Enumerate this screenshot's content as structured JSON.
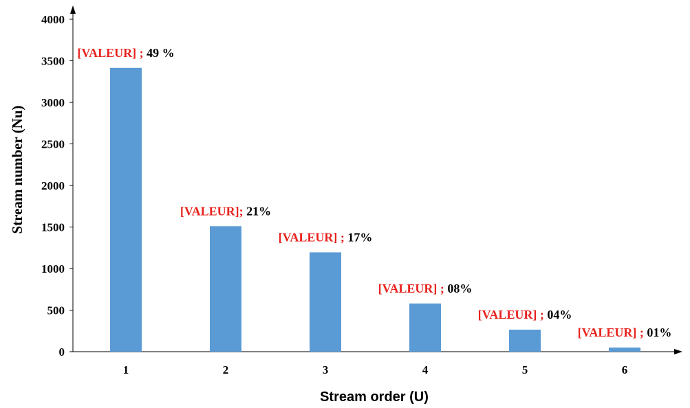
{
  "chart_data": {
    "type": "bar",
    "title": "",
    "xlabel": "Stream order (U)",
    "ylabel": "Stream number (Nu)",
    "categories": [
      "1",
      "2",
      "3",
      "4",
      "5",
      "6"
    ],
    "values": [
      3415,
      1510,
      1195,
      580,
      265,
      50
    ],
    "ylim": [
      0,
      4000
    ],
    "yticks": [
      "0",
      "500",
      "1000",
      "1500",
      "2000",
      "2500",
      "3000",
      "3500",
      "4000"
    ],
    "data_labels": [
      {
        "value_text": "[VALEUR]",
        "sep": " ; ",
        "pct": "49 %"
      },
      {
        "value_text": "[VALEUR]",
        "sep": "; ",
        "pct": "21%"
      },
      {
        "value_text": "[VALEUR]",
        "sep": " ; ",
        "pct": "17%"
      },
      {
        "value_text": "[VALEUR]",
        "sep": " ; ",
        "pct": "08%"
      },
      {
        "value_text": "[VALEUR]",
        "sep": " ; ",
        "pct": "04%"
      },
      {
        "value_text": "[VALEUR]",
        "sep": " ; ",
        "pct": "01%"
      }
    ],
    "grid": false,
    "legend": "none",
    "colors": {
      "bar": "#5B9BD5",
      "label_value": "#E8231E",
      "label_pct": "#000000",
      "axis": "#000000"
    }
  }
}
